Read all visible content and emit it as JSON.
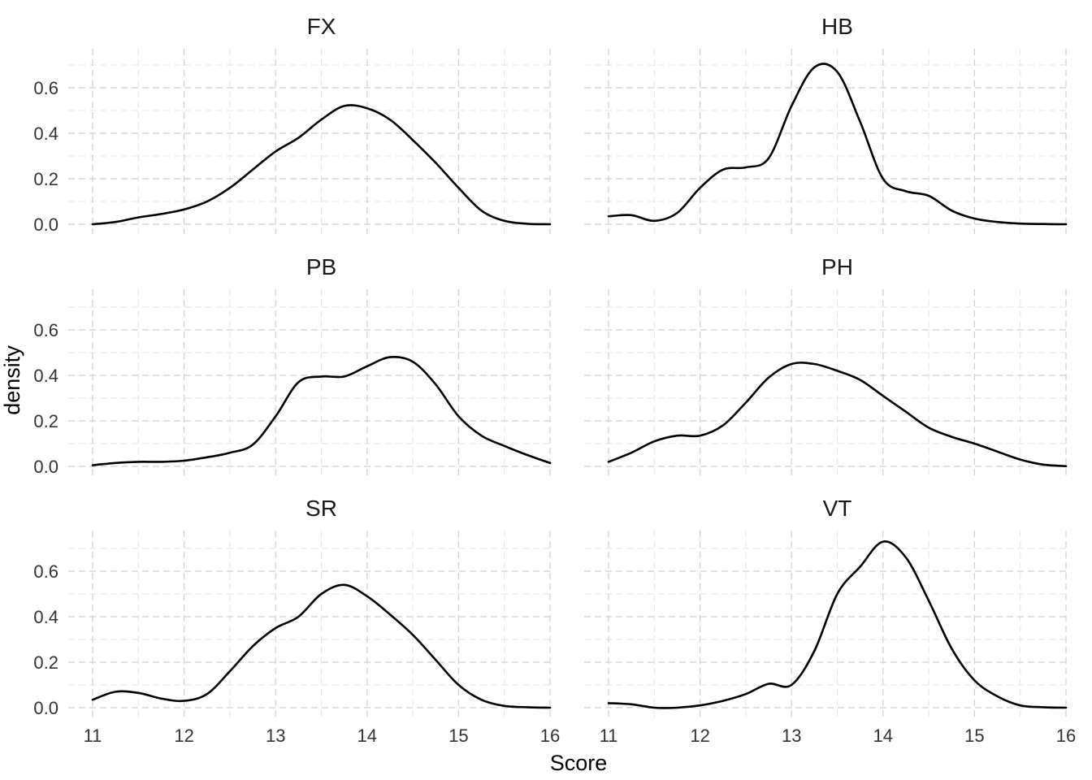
{
  "chart_data": {
    "type": "line",
    "title": "",
    "xlabel": "Score",
    "ylabel": "density",
    "xlim": [
      11,
      16
    ],
    "ylim": [
      0,
      0.7
    ],
    "x_ticks": [
      11,
      12,
      13,
      14,
      15,
      16
    ],
    "x_tick_labels": [
      "11",
      "12",
      "13",
      "14",
      "15",
      "16"
    ],
    "y_ticks": [
      0.0,
      0.2,
      0.4,
      0.6
    ],
    "y_tick_labels": [
      "0.0",
      "0.2",
      "0.4",
      "0.6"
    ],
    "grid": true,
    "x": [
      11.0,
      11.25,
      11.5,
      11.75,
      12.0,
      12.25,
      12.5,
      12.75,
      13.0,
      13.25,
      13.5,
      13.75,
      14.0,
      14.25,
      14.5,
      14.75,
      15.0,
      15.25,
      15.5,
      15.75,
      16.0
    ],
    "series": [
      {
        "name": "FX",
        "values": [
          0.0,
          0.01,
          0.03,
          0.045,
          0.065,
          0.1,
          0.16,
          0.24,
          0.32,
          0.38,
          0.46,
          0.52,
          0.51,
          0.46,
          0.37,
          0.27,
          0.16,
          0.06,
          0.015,
          0.002,
          0.0
        ]
      },
      {
        "name": "HB",
        "values": [
          0.035,
          0.04,
          0.015,
          0.05,
          0.16,
          0.24,
          0.25,
          0.29,
          0.52,
          0.69,
          0.67,
          0.45,
          0.2,
          0.145,
          0.125,
          0.06,
          0.025,
          0.01,
          0.003,
          0.001,
          0.0
        ]
      },
      {
        "name": "PB",
        "values": [
          0.005,
          0.015,
          0.02,
          0.02,
          0.025,
          0.04,
          0.06,
          0.095,
          0.22,
          0.37,
          0.395,
          0.395,
          0.44,
          0.48,
          0.46,
          0.36,
          0.22,
          0.135,
          0.09,
          0.05,
          0.015
        ]
      },
      {
        "name": "PH",
        "values": [
          0.02,
          0.06,
          0.11,
          0.135,
          0.135,
          0.18,
          0.28,
          0.39,
          0.45,
          0.45,
          0.42,
          0.38,
          0.31,
          0.24,
          0.17,
          0.13,
          0.1,
          0.065,
          0.03,
          0.008,
          0.001
        ]
      },
      {
        "name": "SR",
        "values": [
          0.035,
          0.07,
          0.065,
          0.04,
          0.03,
          0.06,
          0.16,
          0.27,
          0.35,
          0.4,
          0.5,
          0.54,
          0.49,
          0.41,
          0.32,
          0.21,
          0.1,
          0.035,
          0.008,
          0.002,
          0.0
        ]
      },
      {
        "name": "VT",
        "values": [
          0.02,
          0.015,
          0.0,
          0.0,
          0.01,
          0.03,
          0.06,
          0.105,
          0.1,
          0.25,
          0.5,
          0.62,
          0.73,
          0.66,
          0.47,
          0.26,
          0.12,
          0.05,
          0.01,
          0.002,
          0.0
        ]
      }
    ]
  }
}
